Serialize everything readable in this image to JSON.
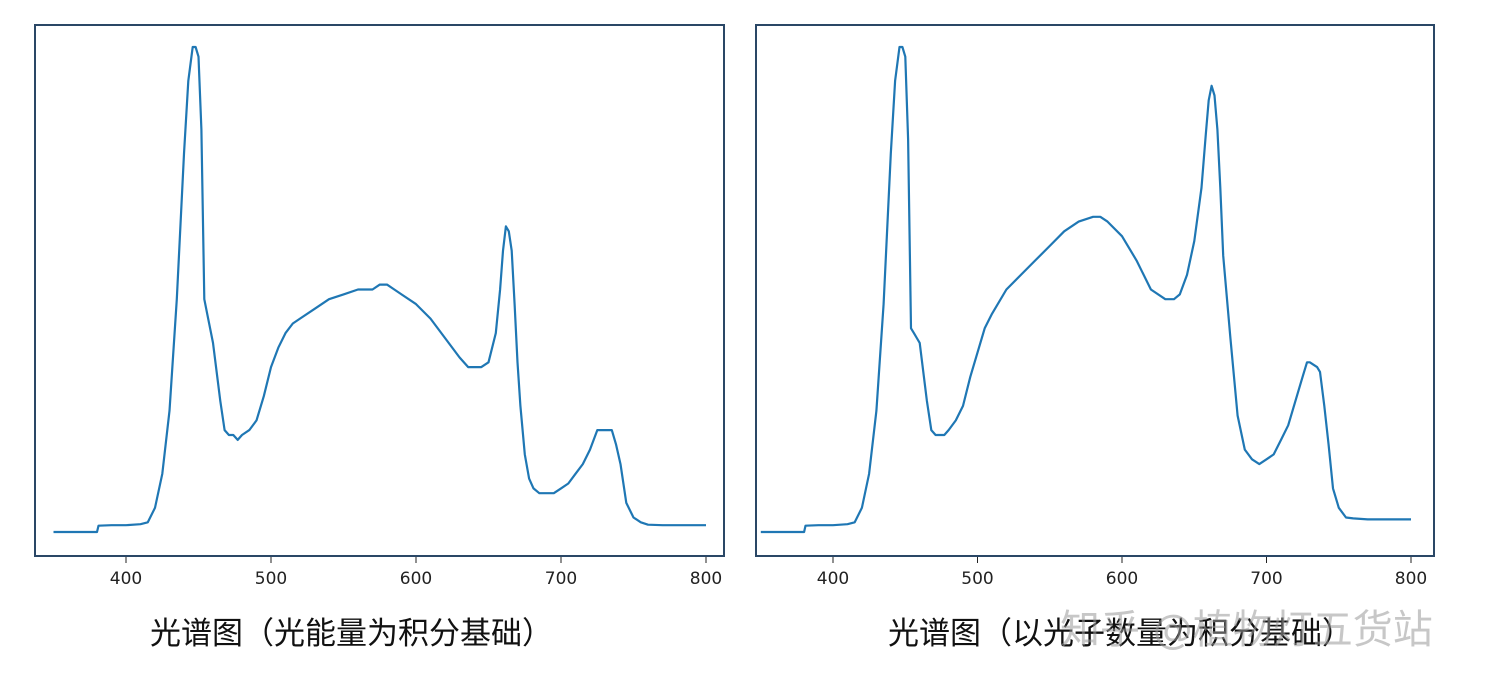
{
  "colors": {
    "line": "#1f77b4",
    "frame": "#2a4766"
  },
  "watermark": "知乎 @植物灯五货站",
  "chart_data": [
    {
      "type": "line",
      "caption": "光谱图（光能量为积分基础）",
      "xlim": [
        340,
        810
      ],
      "x_ticks": [
        "400",
        "500",
        "600",
        "700",
        "800"
      ],
      "ylim": [
        0,
        1.03
      ],
      "grid": false,
      "legend": "none",
      "series": [
        {
          "x": [
            350,
            380,
            381,
            390,
            400,
            410,
            415,
            420,
            425,
            430,
            435,
            440,
            443,
            446,
            448,
            450,
            452,
            454,
            456,
            458,
            460,
            465,
            468,
            471,
            474,
            477,
            480,
            485,
            490,
            495,
            500,
            505,
            510,
            515,
            520,
            530,
            540,
            550,
            560,
            570,
            575,
            580,
            585,
            590,
            600,
            610,
            620,
            630,
            636,
            640,
            645,
            650,
            655,
            658,
            660,
            662,
            664,
            666,
            668,
            670,
            672,
            675,
            678,
            681,
            685,
            690,
            695,
            700,
            705,
            710,
            715,
            720,
            725,
            728,
            730,
            735,
            738,
            741,
            745,
            750,
            755,
            760,
            770,
            780,
            800
          ],
          "y": [
            0.0,
            0.0,
            0.013,
            0.014,
            0.014,
            0.016,
            0.02,
            0.05,
            0.12,
            0.25,
            0.48,
            0.78,
            0.93,
            1.0,
            1.0,
            0.98,
            0.83,
            0.48,
            0.45,
            0.42,
            0.39,
            0.27,
            0.21,
            0.2,
            0.2,
            0.19,
            0.2,
            0.21,
            0.23,
            0.28,
            0.34,
            0.38,
            0.41,
            0.43,
            0.44,
            0.46,
            0.48,
            0.49,
            0.5,
            0.5,
            0.51,
            0.51,
            0.5,
            0.49,
            0.47,
            0.44,
            0.4,
            0.36,
            0.34,
            0.34,
            0.34,
            0.35,
            0.41,
            0.5,
            0.58,
            0.63,
            0.62,
            0.58,
            0.47,
            0.35,
            0.26,
            0.16,
            0.11,
            0.09,
            0.08,
            0.08,
            0.08,
            0.09,
            0.1,
            0.12,
            0.14,
            0.17,
            0.21,
            0.21,
            0.21,
            0.21,
            0.18,
            0.14,
            0.06,
            0.03,
            0.02,
            0.015,
            0.014,
            0.014,
            0.014
          ]
        }
      ]
    },
    {
      "type": "line",
      "caption": "光谱图（以光子数量为积分基础）",
      "xlim": [
        340,
        810
      ],
      "x_ticks": [
        "400",
        "500",
        "600",
        "700",
        "800"
      ],
      "ylim": [
        0,
        1.03
      ],
      "grid": false,
      "legend": "none",
      "series": [
        {
          "x": [
            350,
            380,
            381,
            390,
            400,
            410,
            415,
            420,
            425,
            430,
            435,
            440,
            443,
            446,
            448,
            450,
            452,
            454,
            456,
            458,
            460,
            465,
            468,
            471,
            474,
            477,
            480,
            485,
            490,
            495,
            500,
            505,
            510,
            520,
            530,
            540,
            550,
            560,
            570,
            580,
            585,
            590,
            600,
            610,
            620,
            630,
            636,
            640,
            645,
            650,
            655,
            658,
            660,
            662,
            664,
            666,
            668,
            670,
            675,
            680,
            685,
            690,
            695,
            700,
            705,
            710,
            715,
            720,
            725,
            728,
            730,
            735,
            737,
            740,
            743,
            746,
            750,
            755,
            760,
            770,
            780,
            800
          ],
          "y": [
            0.0,
            0.0,
            0.013,
            0.014,
            0.014,
            0.016,
            0.02,
            0.05,
            0.12,
            0.25,
            0.47,
            0.78,
            0.93,
            1.0,
            1.0,
            0.98,
            0.81,
            0.42,
            0.41,
            0.4,
            0.39,
            0.27,
            0.21,
            0.2,
            0.2,
            0.2,
            0.21,
            0.23,
            0.26,
            0.32,
            0.37,
            0.42,
            0.45,
            0.5,
            0.53,
            0.56,
            0.59,
            0.62,
            0.64,
            0.65,
            0.65,
            0.64,
            0.61,
            0.56,
            0.5,
            0.48,
            0.48,
            0.49,
            0.53,
            0.6,
            0.71,
            0.82,
            0.89,
            0.92,
            0.9,
            0.83,
            0.71,
            0.57,
            0.4,
            0.24,
            0.17,
            0.15,
            0.14,
            0.15,
            0.16,
            0.19,
            0.22,
            0.27,
            0.32,
            0.35,
            0.35,
            0.34,
            0.33,
            0.26,
            0.18,
            0.09,
            0.05,
            0.03,
            0.028,
            0.026,
            0.026,
            0.026
          ]
        }
      ]
    }
  ]
}
